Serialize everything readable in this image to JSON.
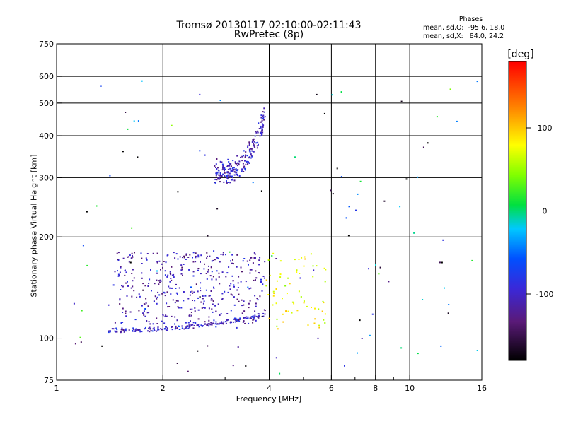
{
  "header": {
    "title_line1": "Tromsø 20130117 02:10:00-02:11:43",
    "title_line2": "RwPretec (8p)"
  },
  "phases_box": {
    "heading": "Phases",
    "line_o": "mean, sd,O:  -95.6, 18.0",
    "line_x": "mean, sd,X:   84.0, 24.2"
  },
  "colorbar": {
    "title": "[deg]",
    "ticks": [
      100,
      0,
      -100
    ],
    "min": -180,
    "max": 180
  },
  "chart_data": {
    "type": "scatter",
    "title": "Tromsø 20130117 02:10:00-02:11:43",
    "subtitle": "RwPretec (8p)",
    "xlabel": "Frequency [MHz]",
    "ylabel": "Stationary phase Virtual Height [km]",
    "x_scale": "log",
    "y_scale": "log",
    "xlim": [
      1,
      16
    ],
    "ylim": [
      75,
      750
    ],
    "x_ticks": [
      1,
      2,
      4,
      6,
      8,
      10,
      16
    ],
    "x_minor_ticks": [
      3,
      5,
      7,
      9
    ],
    "y_ticks": [
      75,
      100,
      200,
      300,
      400,
      500,
      600,
      750
    ],
    "grid": true,
    "color_scale": "phase [deg], -180 to 180",
    "traces": [
      {
        "name": "O-mode low trace",
        "x_range": [
          1.4,
          3.9
        ],
        "y_range": [
          104,
          116
        ],
        "phase": -100,
        "count": 180
      },
      {
        "name": "O-mode low trace upper cloud",
        "x_range": [
          1.45,
          3.9
        ],
        "y_range": [
          110,
          180
        ],
        "phase": -110,
        "count": 420
      },
      {
        "name": "F-layer trace",
        "x_range": [
          2.8,
          3.9
        ],
        "y_range": [
          300,
          480
        ],
        "phase": -105,
        "count": 220
      },
      {
        "name": "X-mode points",
        "x_range": [
          3.9,
          5.8
        ],
        "y_range": [
          105,
          180
        ],
        "phase": 75,
        "count": 70
      },
      {
        "name": "sparse points",
        "x_range": [
          1.1,
          16
        ],
        "y_range": [
          78,
          600
        ],
        "phase": -80,
        "count": 110
      }
    ]
  }
}
